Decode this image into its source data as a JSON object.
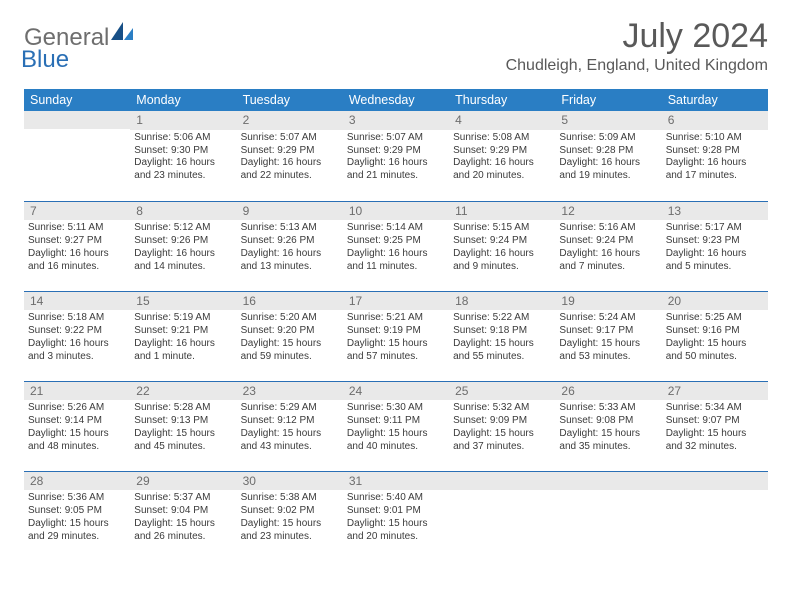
{
  "logo": {
    "part1": "General",
    "part2": "Blue"
  },
  "title": "July 2024",
  "location": "Chudleigh, England, United Kingdom",
  "colors": {
    "header_bg": "#2a7ec4",
    "header_fg": "#ffffff",
    "rule": "#2a6fb5",
    "daynum_bg": "#e9e9e9",
    "daynum_fg": "#6d6d6d",
    "body_fg": "#3b3b3b",
    "title_fg": "#595959",
    "logo_gray": "#6e6e6e",
    "logo_blue": "#2a6fb5"
  },
  "days_of_week": [
    "Sunday",
    "Monday",
    "Tuesday",
    "Wednesday",
    "Thursday",
    "Friday",
    "Saturday"
  ],
  "weeks": [
    [
      null,
      {
        "n": "1",
        "sr": "5:06 AM",
        "ss": "9:30 PM",
        "dl": "16 hours and 23 minutes."
      },
      {
        "n": "2",
        "sr": "5:07 AM",
        "ss": "9:29 PM",
        "dl": "16 hours and 22 minutes."
      },
      {
        "n": "3",
        "sr": "5:07 AM",
        "ss": "9:29 PM",
        "dl": "16 hours and 21 minutes."
      },
      {
        "n": "4",
        "sr": "5:08 AM",
        "ss": "9:29 PM",
        "dl": "16 hours and 20 minutes."
      },
      {
        "n": "5",
        "sr": "5:09 AM",
        "ss": "9:28 PM",
        "dl": "16 hours and 19 minutes."
      },
      {
        "n": "6",
        "sr": "5:10 AM",
        "ss": "9:28 PM",
        "dl": "16 hours and 17 minutes."
      }
    ],
    [
      {
        "n": "7",
        "sr": "5:11 AM",
        "ss": "9:27 PM",
        "dl": "16 hours and 16 minutes."
      },
      {
        "n": "8",
        "sr": "5:12 AM",
        "ss": "9:26 PM",
        "dl": "16 hours and 14 minutes."
      },
      {
        "n": "9",
        "sr": "5:13 AM",
        "ss": "9:26 PM",
        "dl": "16 hours and 13 minutes."
      },
      {
        "n": "10",
        "sr": "5:14 AM",
        "ss": "9:25 PM",
        "dl": "16 hours and 11 minutes."
      },
      {
        "n": "11",
        "sr": "5:15 AM",
        "ss": "9:24 PM",
        "dl": "16 hours and 9 minutes."
      },
      {
        "n": "12",
        "sr": "5:16 AM",
        "ss": "9:24 PM",
        "dl": "16 hours and 7 minutes."
      },
      {
        "n": "13",
        "sr": "5:17 AM",
        "ss": "9:23 PM",
        "dl": "16 hours and 5 minutes."
      }
    ],
    [
      {
        "n": "14",
        "sr": "5:18 AM",
        "ss": "9:22 PM",
        "dl": "16 hours and 3 minutes."
      },
      {
        "n": "15",
        "sr": "5:19 AM",
        "ss": "9:21 PM",
        "dl": "16 hours and 1 minute."
      },
      {
        "n": "16",
        "sr": "5:20 AM",
        "ss": "9:20 PM",
        "dl": "15 hours and 59 minutes."
      },
      {
        "n": "17",
        "sr": "5:21 AM",
        "ss": "9:19 PM",
        "dl": "15 hours and 57 minutes."
      },
      {
        "n": "18",
        "sr": "5:22 AM",
        "ss": "9:18 PM",
        "dl": "15 hours and 55 minutes."
      },
      {
        "n": "19",
        "sr": "5:24 AM",
        "ss": "9:17 PM",
        "dl": "15 hours and 53 minutes."
      },
      {
        "n": "20",
        "sr": "5:25 AM",
        "ss": "9:16 PM",
        "dl": "15 hours and 50 minutes."
      }
    ],
    [
      {
        "n": "21",
        "sr": "5:26 AM",
        "ss": "9:14 PM",
        "dl": "15 hours and 48 minutes."
      },
      {
        "n": "22",
        "sr": "5:28 AM",
        "ss": "9:13 PM",
        "dl": "15 hours and 45 minutes."
      },
      {
        "n": "23",
        "sr": "5:29 AM",
        "ss": "9:12 PM",
        "dl": "15 hours and 43 minutes."
      },
      {
        "n": "24",
        "sr": "5:30 AM",
        "ss": "9:11 PM",
        "dl": "15 hours and 40 minutes."
      },
      {
        "n": "25",
        "sr": "5:32 AM",
        "ss": "9:09 PM",
        "dl": "15 hours and 37 minutes."
      },
      {
        "n": "26",
        "sr": "5:33 AM",
        "ss": "9:08 PM",
        "dl": "15 hours and 35 minutes."
      },
      {
        "n": "27",
        "sr": "5:34 AM",
        "ss": "9:07 PM",
        "dl": "15 hours and 32 minutes."
      }
    ],
    [
      {
        "n": "28",
        "sr": "5:36 AM",
        "ss": "9:05 PM",
        "dl": "15 hours and 29 minutes."
      },
      {
        "n": "29",
        "sr": "5:37 AM",
        "ss": "9:04 PM",
        "dl": "15 hours and 26 minutes."
      },
      {
        "n": "30",
        "sr": "5:38 AM",
        "ss": "9:02 PM",
        "dl": "15 hours and 23 minutes."
      },
      {
        "n": "31",
        "sr": "5:40 AM",
        "ss": "9:01 PM",
        "dl": "15 hours and 20 minutes."
      },
      null,
      null,
      null
    ]
  ],
  "labels": {
    "sunrise": "Sunrise: ",
    "sunset": "Sunset: ",
    "daylight": "Daylight: "
  }
}
